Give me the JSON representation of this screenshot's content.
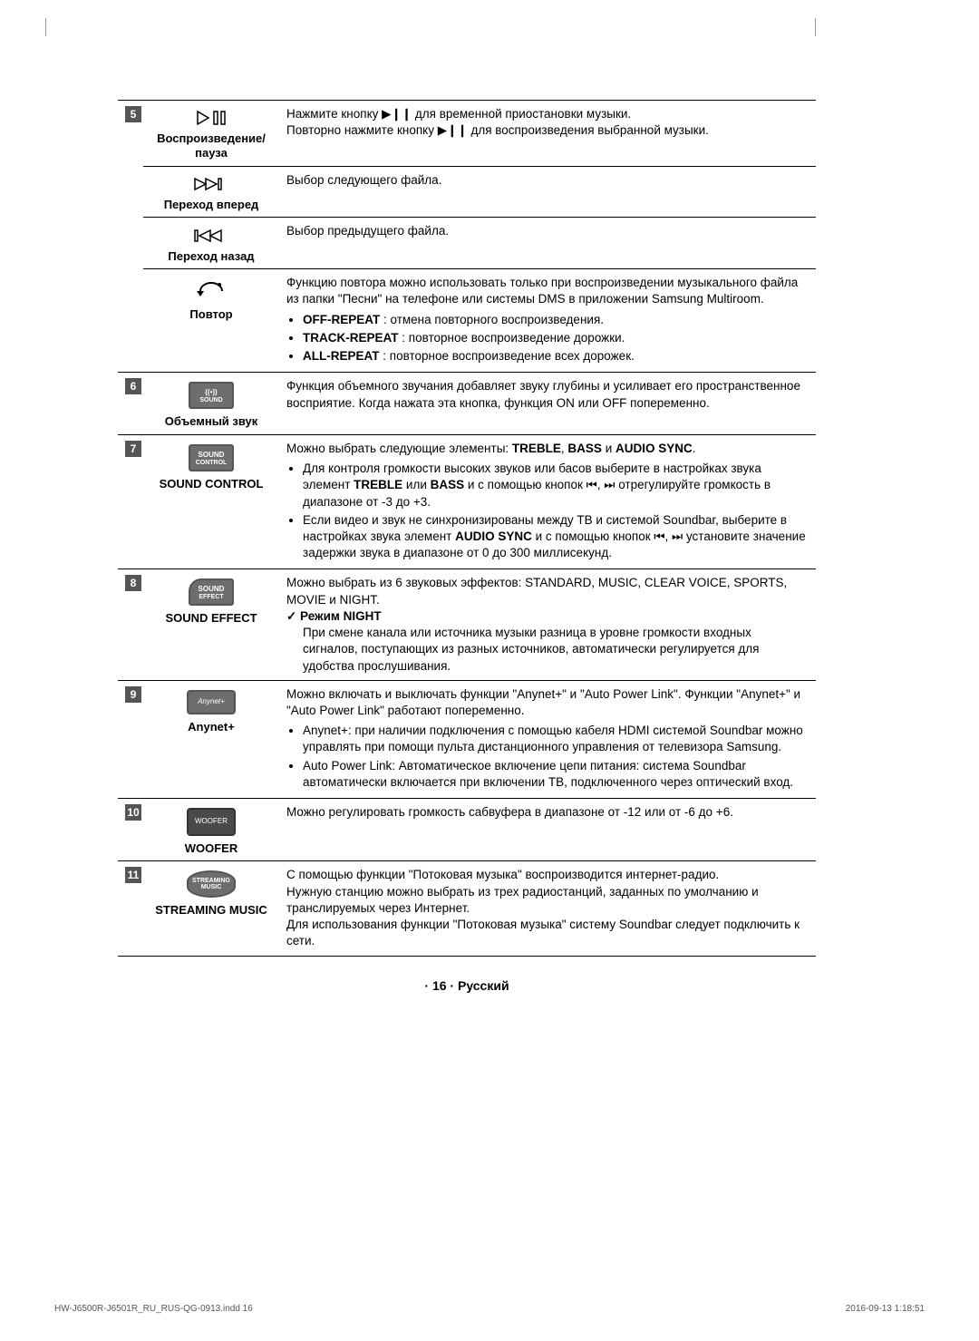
{
  "rows": [
    {
      "num": "5",
      "subrows": [
        {
          "icon": "play-pause",
          "label": "Воспроизведение/ пауза",
          "desc_lines": [
            "Нажмите кнопку ▶❙❙ для временной приостановки музыки.",
            "Повторно нажмите кнопку ▶❙❙ для воспроизведения выбранной музыки."
          ]
        },
        {
          "icon": "skip-fwd",
          "label": "Переход вперед",
          "desc_lines": [
            "Выбор следующего файла."
          ]
        },
        {
          "icon": "skip-back",
          "label": "Переход назад",
          "desc_lines": [
            "Выбор предыдущего файла."
          ]
        },
        {
          "icon": "repeat",
          "label": "Повтор",
          "desc_lines": [
            "Функцию повтора можно использовать только при воспроизведении музыкального файла из папки \"Песни\" на телефоне или системы DMS в приложении Samsung Multiroom."
          ],
          "bullets_html": [
            "<b>OFF-REPEAT</b> : отмена повторного воспроизведения.",
            "<b>TRACK-REPEAT</b> : повторное воспроизведение дорожки.",
            "<b>ALL-REPEAT</b> : повторное воспроизведение всех дорожек."
          ]
        }
      ]
    },
    {
      "num": "6",
      "label": "Объемный звук",
      "btn": {
        "type": "rect",
        "line1_html": "((•))",
        "line2": "SOUND"
      },
      "desc_lines": [
        "Функция объемного звучания добавляет звуку глубины и усиливает его пространственное восприятие. Когда нажата эта кнопка, функция ON или OFF попеременно."
      ]
    },
    {
      "num": "7",
      "label": "SOUND CONTROL",
      "btn": {
        "type": "rect",
        "line1_html": "SOUND",
        "line2": "CONTROL"
      },
      "desc_html": "Можно выбрать следующие элементы: <b>TREBLE</b>, <b>BASS</b> и <b>AUDIO SYNC</b>.",
      "bullets_html": [
        "Для контроля громкости высоких звуков или басов выберите в настройках звука элемент <b>TREBLE</b> или <b>BASS</b> и с помощью кнопок ⏮, ⏭ отрегулируйте громкость в диапазоне от -3 до +3.",
        "Если видео и звук не синхронизированы между ТВ и системой Soundbar, выберите в настройках звука элемент <b>AUDIO SYNC</b> и с помощью кнопок ⏮, ⏭ установите значение задержки звука в диапазоне от 0 до 300 миллисекунд."
      ]
    },
    {
      "num": "8",
      "label": "SOUND EFFECT",
      "btn": {
        "type": "rect-curve",
        "line1_html": "SOUND",
        "line2": "EFFECT"
      },
      "desc_lines": [
        "Можно выбрать из 6 звуковых эффектов: STANDARD, MUSIC, CLEAR VOICE, SPORTS, MOVIE и NIGHT."
      ],
      "check_title": "✓ Режим NIGHT",
      "check_body": "При смене канала или источника музыки разница в уровне громкости входных сигналов, поступающих из разных источников, автоматически регулируется для удобства прослушивания."
    },
    {
      "num": "9",
      "label": "Anynet+",
      "btn": {
        "type": "anynet",
        "text": "Anynet+"
      },
      "desc_lines": [
        "Можно включать и выключать функции \"Anynet+\" и \"Auto Power Link\". Функции \"Anynet+\" и \"Auto Power Link\" работают попеременно."
      ],
      "bullets_html": [
        "Anynet+: при наличии подключения с помощью кабеля HDMI системой Soundbar можно управлять при помощи пульта дистанционного управления от телевизора Samsung.",
        "Auto Power Link: Автоматическое включение цепи питания: система Soundbar автоматически включается при включении ТВ, подключенного через оптический вход."
      ]
    },
    {
      "num": "10",
      "label": "WOOFER",
      "btn": {
        "type": "dark",
        "text": "WOOFER"
      },
      "desc_lines": [
        "Можно регулировать громкость сабвуфера в диапазоне от -12 или от -6 до +6."
      ]
    },
    {
      "num": "11",
      "label": "STREAMING MUSIC",
      "btn": {
        "type": "stream",
        "line1": "STREAMING",
        "line2": "MUSIC"
      },
      "desc_lines": [
        "С помощью функции \"Потоковая музыка\" воспроизводится интернет-радио.",
        "Нужную станцию можно выбрать из трех радиостанций, заданных по умолчанию и транслируемых через Интернет.",
        "Для использования функции \"Потоковая музыка\" систему Soundbar следует подключить к сети."
      ]
    }
  ],
  "footer_center": "· 16 · Русский",
  "footer_left": "HW-J6500R-J6501R_RU_RUS-QG-0913.indd   16",
  "footer_right": "2016-09-13    1:18:51"
}
